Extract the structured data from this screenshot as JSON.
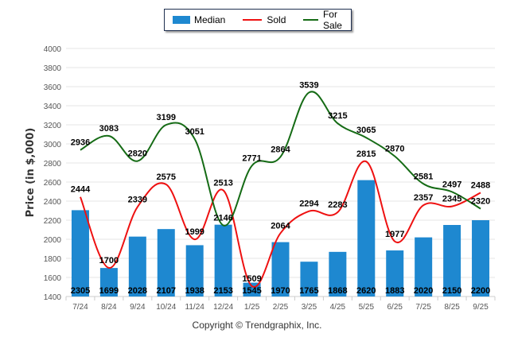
{
  "chart_data": {
    "type": "bar",
    "title": "",
    "xlabel": "",
    "ylabel": "Price (in $,000)",
    "ylim": [
      1400,
      4000
    ],
    "yticks": [
      1400,
      1600,
      1800,
      2000,
      2200,
      2400,
      2600,
      2800,
      3000,
      3200,
      3400,
      3600,
      3800,
      4000
    ],
    "grid": true,
    "legend_position": "top-center",
    "categories": [
      "7/24",
      "8/24",
      "9/24",
      "10/24",
      "11/24",
      "12/24",
      "1/25",
      "2/25",
      "3/25",
      "4/25",
      "5/25",
      "6/25",
      "7/25",
      "8/25",
      "9/25"
    ],
    "series": [
      {
        "name": "Median",
        "kind": "bar",
        "color": "#1e88d0",
        "values": [
          2305,
          1699,
          2028,
          2107,
          1938,
          2153,
          1545,
          1970,
          1765,
          1868,
          2620,
          1883,
          2020,
          2150,
          2200
        ]
      },
      {
        "name": "Sold",
        "kind": "line",
        "color": "#ee1111",
        "values": [
          2444,
          1700,
          2339,
          2575,
          1999,
          2513,
          1509,
          2064,
          2294,
          2283,
          2815,
          1977,
          2357,
          2345,
          2488
        ]
      },
      {
        "name": "For Sale",
        "kind": "line",
        "color": "#156b15",
        "values": [
          2936,
          3083,
          2820,
          3199,
          3051,
          2146,
          2771,
          2864,
          3539,
          3215,
          3065,
          2870,
          2581,
          2497,
          2320
        ]
      }
    ]
  },
  "legend": {
    "items": [
      {
        "label": "Median",
        "color": "#1e88d0"
      },
      {
        "label": "Sold",
        "color": "#ee1111"
      },
      {
        "label": "For Sale",
        "color": "#156b15"
      }
    ]
  },
  "footer": {
    "copyright": "Copyright © Trendgraphix, Inc."
  }
}
